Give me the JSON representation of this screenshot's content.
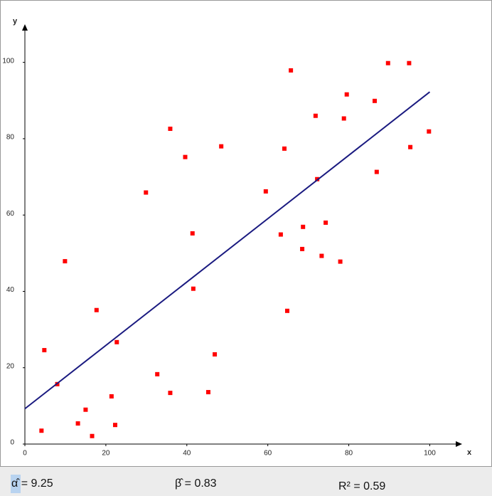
{
  "chart_data": {
    "type": "scatter",
    "x_label": "x",
    "y_label": "y",
    "xlim": [
      0,
      108
    ],
    "ylim": [
      0,
      110
    ],
    "xticks": [
      0,
      20,
      40,
      60,
      80,
      100
    ],
    "yticks": [
      0,
      20,
      40,
      60,
      80,
      100
    ],
    "color": "#ff0000",
    "line_color": "#1a1a80",
    "x": [
      4.1,
      4.8,
      8.0,
      9.9,
      13.1,
      15.0,
      16.6,
      17.7,
      21.4,
      22.3,
      22.7,
      29.9,
      32.7,
      35.9,
      35.9,
      39.6,
      41.4,
      41.6,
      45.3,
      46.9,
      48.5,
      59.5,
      63.2,
      64.1,
      64.8,
      65.7,
      68.7,
      68.5,
      71.8,
      72.2,
      73.3,
      74.3,
      77.9,
      78.8,
      79.5,
      86.4,
      86.9,
      89.7,
      94.9,
      95.2,
      99.8
    ],
    "values": [
      3.5,
      24.6,
      15.7,
      47.9,
      5.4,
      9.0,
      2.1,
      35.1,
      12.5,
      5.0,
      26.7,
      65.9,
      18.3,
      82.6,
      13.4,
      75.2,
      55.2,
      40.7,
      13.6,
      23.5,
      78.0,
      66.2,
      54.9,
      77.4,
      34.9,
      97.9,
      56.9,
      51.1,
      86.0,
      69.4,
      49.3,
      58.0,
      47.8,
      85.3,
      91.6,
      89.9,
      71.3,
      99.8,
      99.8,
      77.8,
      81.9
    ],
    "fit": {
      "alpha": 9.25,
      "beta": 0.83,
      "r2": 0.59,
      "alpha_label": "α̂ = 9.25",
      "beta_label": "β̂ = 0.83",
      "r2_label": "R² = 0.59"
    }
  }
}
